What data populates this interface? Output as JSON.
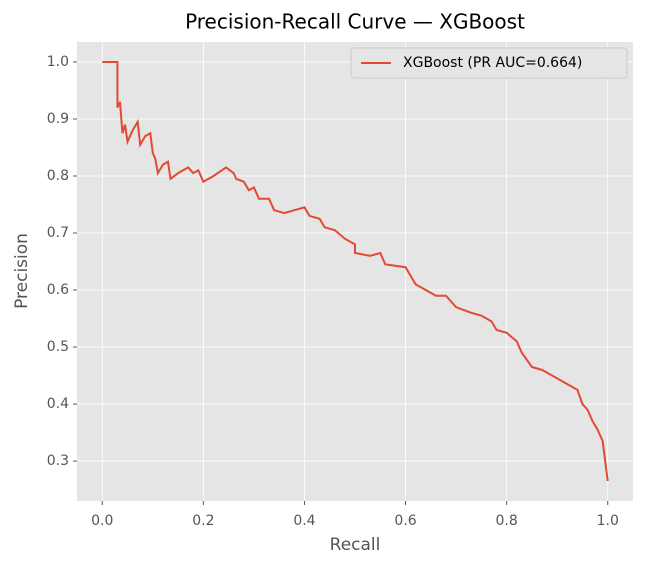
{
  "chart_data": {
    "type": "line",
    "title": "Precision-Recall Curve — XGBoost",
    "x_label": "Recall",
    "y_label": "Precision",
    "xlim": [
      -0.05,
      1.05
    ],
    "ylim": [
      0.23,
      1.035
    ],
    "xticks": [
      {
        "value": 0,
        "label": "0.0"
      },
      0.2,
      0.4,
      0.6,
      0.8,
      {
        "value": 1,
        "label": "1.0"
      }
    ],
    "yticks": [
      0.3,
      0.4,
      0.5,
      0.6,
      0.7,
      0.8,
      0.9,
      {
        "value": 1,
        "label": "1.0"
      }
    ],
    "grid": true,
    "legend": "upper right",
    "series": [
      {
        "name": "XGBoost (PR AUC=0.664)",
        "color": "#e24a33",
        "x": [
          0,
          0.03,
          0.03,
          0.035,
          0.04,
          0.045,
          0.05,
          0.06,
          0.07,
          0.075,
          0.085,
          0.095,
          0.1,
          0.105,
          0.11,
          0.12,
          0.13,
          0.135,
          0.15,
          0.17,
          0.18,
          0.19,
          0.2,
          0.22,
          0.245,
          0.26,
          0.265,
          0.28,
          0.29,
          0.3,
          0.31,
          0.33,
          0.34,
          0.36,
          0.38,
          0.4,
          0.41,
          0.43,
          0.44,
          0.46,
          0.48,
          0.5,
          0.5,
          0.53,
          0.55,
          0.56,
          0.6,
          0.62,
          0.64,
          0.66,
          0.68,
          0.7,
          0.73,
          0.75,
          0.77,
          0.78,
          0.8,
          0.82,
          0.83,
          0.85,
          0.87,
          0.89,
          0.9,
          0.92,
          0.94,
          0.95,
          0.96,
          0.97,
          0.98,
          0.985,
          0.99,
          0.995,
          1.0
        ],
        "values": [
          1.0,
          1.0,
          0.92,
          0.93,
          0.875,
          0.89,
          0.86,
          0.88,
          0.895,
          0.855,
          0.87,
          0.875,
          0.84,
          0.83,
          0.805,
          0.82,
          0.825,
          0.795,
          0.805,
          0.815,
          0.805,
          0.81,
          0.79,
          0.8,
          0.815,
          0.805,
          0.795,
          0.79,
          0.775,
          0.78,
          0.76,
          0.76,
          0.74,
          0.735,
          0.74,
          0.745,
          0.73,
          0.725,
          0.71,
          0.705,
          0.69,
          0.68,
          0.665,
          0.66,
          0.665,
          0.645,
          0.64,
          0.61,
          0.6,
          0.59,
          0.59,
          0.57,
          0.56,
          0.555,
          0.545,
          0.53,
          0.525,
          0.51,
          0.49,
          0.465,
          0.46,
          0.45,
          0.445,
          0.435,
          0.425,
          0.4,
          0.39,
          0.37,
          0.355,
          0.345,
          0.335,
          0.3,
          0.265
        ]
      }
    ]
  }
}
